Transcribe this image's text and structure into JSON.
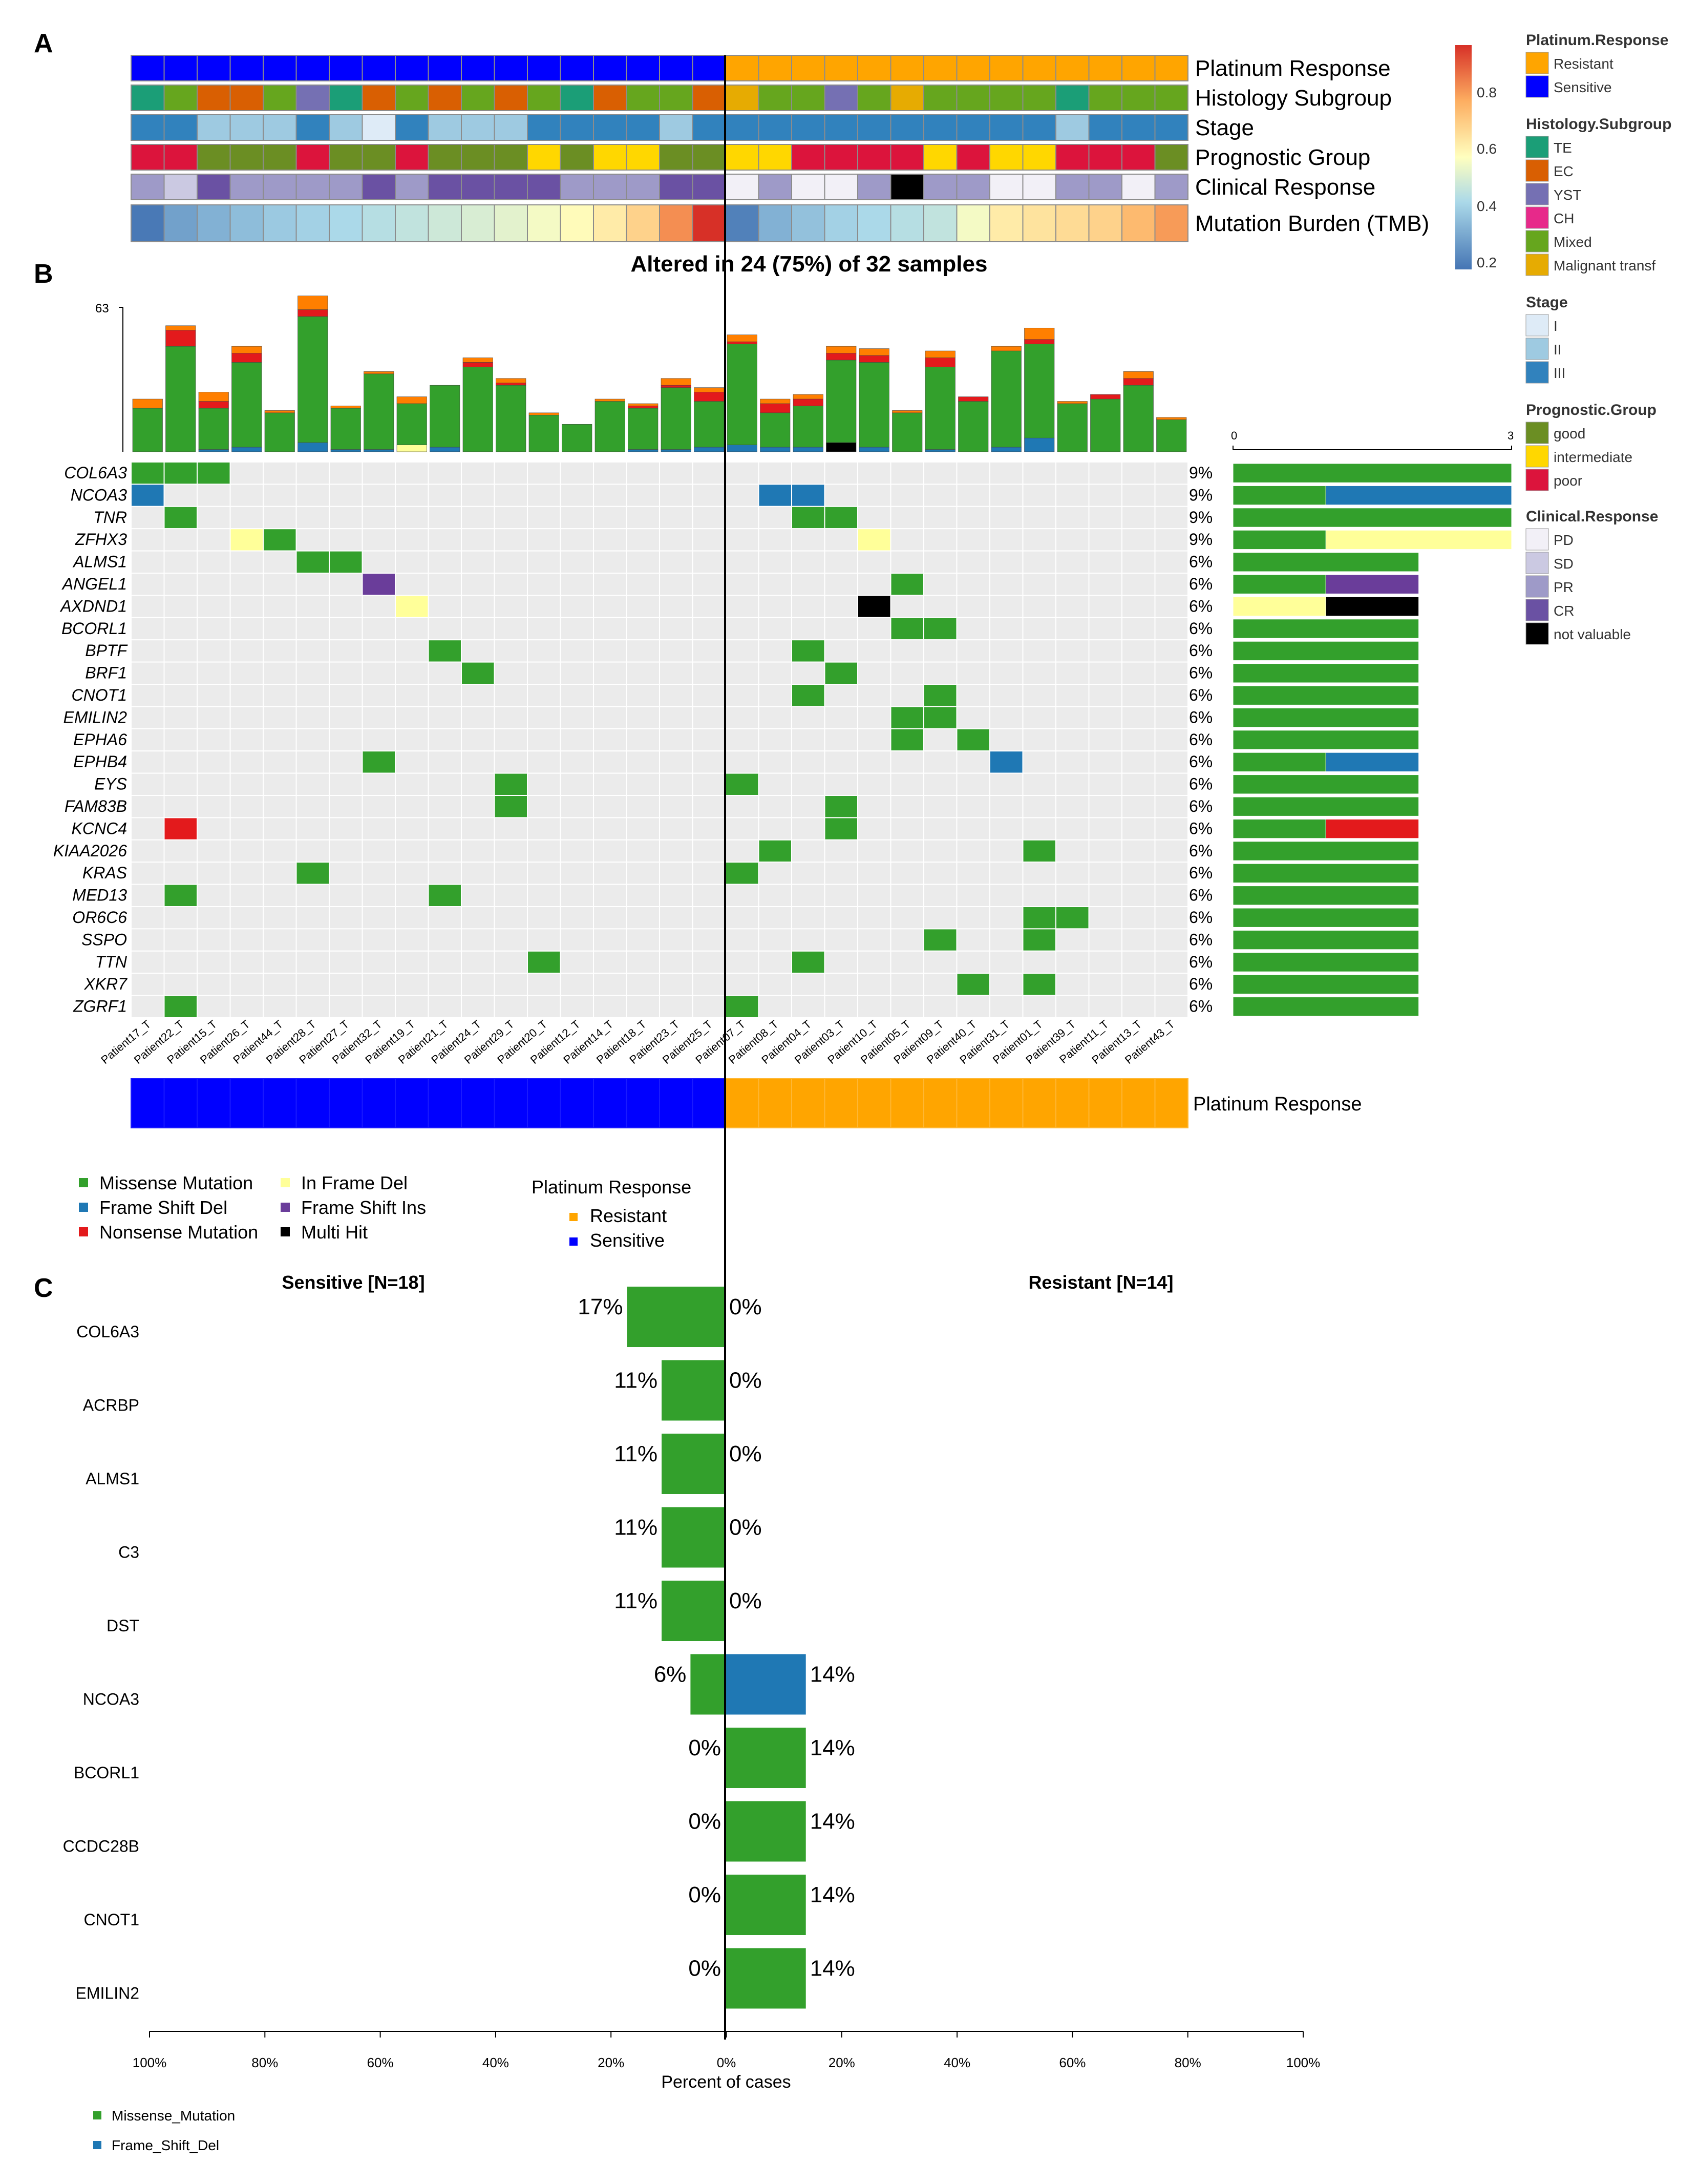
{
  "panels": {
    "a": "A",
    "b": "B",
    "c": "C"
  },
  "colors": {
    "missense": "#33a02c",
    "fsdel": "#1f78b4",
    "nonsense": "#e31a1c",
    "inframe": "#ffff99",
    "fsins": "#6a3d9a",
    "multi": "#000000",
    "splice": "#ff7f00",
    "resistant": "#ffa500",
    "sensitive": "#0000ff",
    "empty": "#ebebeb"
  },
  "patients": [
    "Patient17_T",
    "Patient22_T",
    "Patient15_T",
    "Patient26_T",
    "Patient44_T",
    "Patient28_T",
    "Patient27_T",
    "Patient32_T",
    "Patient19_T",
    "Patient21_T",
    "Patient24_T",
    "Patient29_T",
    "Patient20_T",
    "Patient12_T",
    "Patient14_T",
    "Patient18_T",
    "Patient23_T",
    "Patient25_T",
    "Patient07_T",
    "Patient08_T",
    "Patient04_T",
    "Patient03_T",
    "Patient10_T",
    "Patient05_T",
    "Patient09_T",
    "Patient40_T",
    "Patient31_T",
    "Patient01_T",
    "Patient39_T",
    "Patient11_T",
    "Patient13_T",
    "Patient43_T"
  ],
  "annotation_tracks": {
    "labels": [
      "Platinum Response",
      "Histology Subgroup",
      "Stage",
      "Prognostic Group",
      "Clinical Response",
      "Mutation Burden (TMB)"
    ],
    "platinum": [
      "S",
      "S",
      "S",
      "S",
      "S",
      "S",
      "S",
      "S",
      "S",
      "S",
      "S",
      "S",
      "S",
      "S",
      "S",
      "S",
      "S",
      "S",
      "R",
      "R",
      "R",
      "R",
      "R",
      "R",
      "R",
      "R",
      "R",
      "R",
      "R",
      "R",
      "R",
      "R"
    ],
    "histology": [
      "TE",
      "Mixed",
      "EC",
      "EC",
      "Mixed",
      "YST",
      "TE",
      "EC",
      "Mixed",
      "EC",
      "Mixed",
      "EC",
      "Mixed",
      "TE",
      "EC",
      "Mixed",
      "Mixed",
      "EC",
      "Malignant transf",
      "Mixed",
      "Mixed",
      "YST",
      "Mixed",
      "Malignant transf",
      "Mixed",
      "Mixed",
      "Mixed",
      "Mixed",
      "TE",
      "Mixed",
      "Mixed",
      "Mixed"
    ],
    "stage": [
      "III",
      "III",
      "II",
      "II",
      "II",
      "III",
      "II",
      "I",
      "III",
      "II",
      "II",
      "II",
      "III",
      "III",
      "III",
      "III",
      "II",
      "III",
      "III",
      "III",
      "III",
      "III",
      "III",
      "III",
      "III",
      "III",
      "III",
      "III",
      "II",
      "III",
      "III",
      "III"
    ],
    "prognostic": [
      "poor",
      "poor",
      "good",
      "good",
      "good",
      "poor",
      "good",
      "good",
      "poor",
      "good",
      "good",
      "good",
      "intermediate",
      "good",
      "intermediate",
      "intermediate",
      "good",
      "good",
      "intermediate",
      "intermediate",
      "poor",
      "poor",
      "poor",
      "poor",
      "intermediate",
      "poor",
      "intermediate",
      "intermediate",
      "poor",
      "poor",
      "poor",
      "good"
    ],
    "clinical": [
      "PR",
      "SD",
      "CR",
      "PR",
      "PR",
      "PR",
      "PR",
      "CR",
      "PR",
      "CR",
      "CR",
      "CR",
      "CR",
      "PR",
      "PR",
      "PR",
      "CR",
      "CR",
      "PD",
      "PR",
      "PD",
      "PD",
      "PR",
      "not valuable",
      "PR",
      "PR",
      "PD",
      "PD",
      "PR",
      "PR",
      "PD",
      "PR"
    ],
    "tmb": [
      0.16,
      0.26,
      0.3,
      0.33,
      0.36,
      0.38,
      0.4,
      0.42,
      0.44,
      0.46,
      0.48,
      0.5,
      0.53,
      0.56,
      0.6,
      0.66,
      0.8,
      0.96,
      0.18,
      0.3,
      0.34,
      0.38,
      0.4,
      0.42,
      0.44,
      0.53,
      0.6,
      0.62,
      0.64,
      0.66,
      0.72,
      0.78
    ]
  },
  "tmb_scale": {
    "ticks": [
      "0.8",
      "0.6",
      "0.4",
      "0.2"
    ]
  },
  "legend_a": {
    "platinum": {
      "title": "Platinum.Response",
      "items": [
        {
          "label": "Resistant",
          "color": "#ffa500"
        },
        {
          "label": "Sensitive",
          "color": "#0000ff"
        }
      ]
    },
    "histology": {
      "title": "Histology.Subgroup",
      "items": [
        {
          "label": "TE",
          "color": "#1b9e77"
        },
        {
          "label": "EC",
          "color": "#d95f02"
        },
        {
          "label": "YST",
          "color": "#7570b3"
        },
        {
          "label": "CH",
          "color": "#e7298a"
        },
        {
          "label": "Mixed",
          "color": "#66a61e"
        },
        {
          "label": "Malignant transf",
          "color": "#e6ab02"
        }
      ]
    },
    "stage": {
      "title": "Stage",
      "items": [
        {
          "label": "I",
          "color": "#deebf7"
        },
        {
          "label": "II",
          "color": "#9ecae1"
        },
        {
          "label": "III",
          "color": "#3182bd"
        }
      ]
    },
    "prognostic": {
      "title": "Prognostic.Group",
      "items": [
        {
          "label": "good",
          "color": "#6b8e23"
        },
        {
          "label": "intermediate",
          "color": "#ffd700"
        },
        {
          "label": "poor",
          "color": "#dc143c"
        }
      ]
    },
    "clinical": {
      "title": "Clinical.Response",
      "items": [
        {
          "label": "PD",
          "color": "#f2f0f7"
        },
        {
          "label": "SD",
          "color": "#cbc9e2"
        },
        {
          "label": "PR",
          "color": "#9e9ac8"
        },
        {
          "label": "CR",
          "color": "#6a51a3"
        },
        {
          "label": "not valuable",
          "color": "#000000"
        }
      ]
    }
  },
  "oncoplot": {
    "title": "Altered in 24 (75%) of 32 samples",
    "tmb_axis_max": "63",
    "side_axis": [
      "0",
      "3"
    ],
    "genes": [
      "COL6A3",
      "NCOA3",
      "TNR",
      "ZFHX3",
      "ALMS1",
      "ANGEL1",
      "AXDND1",
      "BCORL1",
      "BPTF",
      "BRF1",
      "CNOT1",
      "EMILIN2",
      "EPHA6",
      "EPHB4",
      "EYS",
      "FAM83B",
      "KCNC4",
      "KIAA2026",
      "KRAS",
      "MED13",
      "OR6C6",
      "SSPO",
      "TTN",
      "XKR7",
      "ZGRF1"
    ],
    "percents": [
      "9%",
      "9%",
      "9%",
      "9%",
      "6%",
      "6%",
      "6%",
      "6%",
      "6%",
      "6%",
      "6%",
      "6%",
      "6%",
      "6%",
      "6%",
      "6%",
      "6%",
      "6%",
      "6%",
      "6%",
      "6%",
      "6%",
      "6%",
      "6%",
      "6%"
    ],
    "mutations": [
      [
        0,
        "M"
      ],
      [
        1,
        "M"
      ],
      [
        2,
        "M"
      ],
      [
        0,
        "F"
      ],
      [
        19,
        "F"
      ],
      [
        20,
        "F"
      ],
      [
        1,
        "M"
      ],
      [
        20,
        "M"
      ],
      [
        21,
        "M"
      ],
      [
        3,
        "I"
      ],
      [
        4,
        "M"
      ],
      [
        22,
        "I"
      ],
      [
        5,
        "M"
      ],
      [
        6,
        "M"
      ],
      [
        7,
        "S"
      ],
      [
        23,
        "M"
      ],
      [
        8,
        "I"
      ],
      [
        22,
        "X"
      ],
      [
        23,
        "M"
      ],
      [
        24,
        "M"
      ],
      [
        9,
        "M"
      ],
      [
        20,
        "M"
      ],
      [
        10,
        "M"
      ],
      [
        21,
        "M"
      ],
      [
        20,
        "M"
      ],
      [
        24,
        "M"
      ],
      [
        23,
        "M"
      ],
      [
        24,
        "M"
      ],
      [
        23,
        "M"
      ],
      [
        25,
        "M"
      ],
      [
        7,
        "M"
      ],
      [
        26,
        "F"
      ],
      [
        11,
        "M"
      ],
      [
        18,
        "M"
      ],
      [
        11,
        "M"
      ],
      [
        21,
        "M"
      ],
      [
        1,
        "N"
      ],
      [
        21,
        "M"
      ],
      [
        19,
        "M"
      ],
      [
        27,
        "M"
      ],
      [
        5,
        "M"
      ],
      [
        18,
        "M"
      ],
      [
        1,
        "M"
      ],
      [
        9,
        "M"
      ],
      [
        27,
        "M"
      ],
      [
        28,
        "M"
      ],
      [
        24,
        "M"
      ],
      [
        27,
        "M"
      ],
      [
        12,
        "M"
      ],
      [
        20,
        "M"
      ],
      [
        25,
        "M"
      ],
      [
        27,
        "M"
      ],
      [
        1,
        "M"
      ],
      [
        18,
        "M"
      ]
    ],
    "mutation_rows": [
      3,
      3,
      3,
      3,
      2,
      2,
      2,
      2,
      2,
      2,
      2,
      2,
      2,
      2,
      2,
      2,
      2,
      2,
      2,
      2,
      2,
      2,
      2,
      2,
      2
    ],
    "side_bars": [
      [
        [
          "M",
          3
        ]
      ],
      [
        [
          "M",
          1
        ],
        [
          "F",
          2
        ]
      ],
      [
        [
          "M",
          3
        ]
      ],
      [
        [
          "M",
          1
        ],
        [
          "I",
          2
        ]
      ],
      [
        [
          "M",
          2
        ]
      ],
      [
        [
          "M",
          1
        ],
        [
          "S",
          1
        ]
      ],
      [
        [
          "I",
          1
        ],
        [
          "X",
          1
        ]
      ],
      [
        [
          "M",
          2
        ]
      ],
      [
        [
          "M",
          2
        ]
      ],
      [
        [
          "M",
          2
        ]
      ],
      [
        [
          "M",
          2
        ]
      ],
      [
        [
          "M",
          2
        ]
      ],
      [
        [
          "M",
          2
        ]
      ],
      [
        [
          "M",
          1
        ],
        [
          "F",
          1
        ]
      ],
      [
        [
          "M",
          2
        ]
      ],
      [
        [
          "M",
          2
        ]
      ],
      [
        [
          "M",
          1
        ],
        [
          "N",
          1
        ]
      ],
      [
        [
          "M",
          2
        ]
      ],
      [
        [
          "M",
          2
        ]
      ],
      [
        [
          "M",
          2
        ]
      ],
      [
        [
          "M",
          2
        ]
      ],
      [
        [
          "M",
          2
        ]
      ],
      [
        [
          "M",
          2
        ]
      ],
      [
        [
          "M",
          2
        ]
      ],
      [
        [
          "M",
          2
        ]
      ]
    ],
    "tmb_bars": [
      [
        [
          "M",
          19
        ],
        [
          "O",
          4
        ]
      ],
      [
        [
          "M",
          46
        ],
        [
          "N",
          7
        ],
        [
          "O",
          2
        ]
      ],
      [
        [
          "F",
          1
        ],
        [
          "M",
          18
        ],
        [
          "N",
          3
        ],
        [
          "O",
          4
        ]
      ],
      [
        [
          "F",
          2
        ],
        [
          "M",
          37
        ],
        [
          "N",
          4
        ],
        [
          "O",
          3
        ]
      ],
      [
        [
          "M",
          17
        ],
        [
          "O",
          1
        ]
      ],
      [
        [
          "F",
          4
        ],
        [
          "M",
          55
        ],
        [
          "N",
          3
        ],
        [
          "O",
          6
        ]
      ],
      [
        [
          "F",
          1
        ],
        [
          "M",
          18
        ],
        [
          "O",
          1
        ]
      ],
      [
        [
          "F",
          1
        ],
        [
          "M",
          33
        ],
        [
          "O",
          1
        ]
      ],
      [
        [
          "I",
          3
        ],
        [
          "M",
          18
        ],
        [
          "O",
          3
        ]
      ],
      [
        [
          "F",
          2
        ],
        [
          "M",
          27
        ]
      ],
      [
        [
          "M",
          37
        ],
        [
          "N",
          2
        ],
        [
          "O",
          2
        ]
      ],
      [
        [
          "M",
          29
        ],
        [
          "N",
          1
        ],
        [
          "O",
          2
        ]
      ],
      [
        [
          "M",
          16
        ],
        [
          "O",
          1
        ]
      ],
      [
        [
          "M",
          12
        ]
      ],
      [
        [
          "M",
          22
        ],
        [
          "O",
          1
        ]
      ],
      [
        [
          "F",
          1
        ],
        [
          "M",
          18
        ],
        [
          "N",
          1
        ],
        [
          "O",
          1
        ]
      ],
      [
        [
          "F",
          1
        ],
        [
          "M",
          27
        ],
        [
          "N",
          1
        ],
        [
          "O",
          3
        ]
      ],
      [
        [
          "F",
          2
        ],
        [
          "M",
          20
        ],
        [
          "N",
          4
        ],
        [
          "O",
          2
        ]
      ],
      [
        [
          "F",
          3
        ],
        [
          "M",
          44
        ],
        [
          "N",
          1
        ],
        [
          "O",
          3
        ]
      ],
      [
        [
          "F",
          2
        ],
        [
          "M",
          15
        ],
        [
          "N",
          4
        ],
        [
          "O",
          2
        ]
      ],
      [
        [
          "F",
          2
        ],
        [
          "M",
          18
        ],
        [
          "N",
          3
        ],
        [
          "O",
          2
        ]
      ],
      [
        [
          "X",
          4
        ],
        [
          "M",
          36
        ],
        [
          "N",
          3
        ],
        [
          "O",
          3
        ]
      ],
      [
        [
          "F",
          2
        ],
        [
          "M",
          37
        ],
        [
          "N",
          3
        ],
        [
          "O",
          3
        ]
      ],
      [
        [
          "M",
          17
        ],
        [
          "O",
          1
        ]
      ],
      [
        [
          "F",
          1
        ],
        [
          "M",
          36
        ],
        [
          "N",
          4
        ],
        [
          "O",
          3
        ]
      ],
      [
        [
          "M",
          22
        ],
        [
          "N",
          2
        ]
      ],
      [
        [
          "F",
          2
        ],
        [
          "M",
          42
        ],
        [
          "O",
          2
        ]
      ],
      [
        [
          "F",
          6
        ],
        [
          "M",
          41
        ],
        [
          "N",
          2
        ],
        [
          "O",
          5
        ]
      ],
      [
        [
          "M",
          21
        ],
        [
          "O",
          1
        ]
      ],
      [
        [
          "M",
          23
        ],
        [
          "N",
          2
        ]
      ],
      [
        [
          "M",
          29
        ],
        [
          "N",
          3
        ],
        [
          "O",
          3
        ]
      ],
      [
        [
          "M",
          14
        ],
        [
          "O",
          1
        ]
      ]
    ],
    "bottom_track_label": "Platinum Response"
  },
  "legend_b": {
    "items": [
      {
        "label": "Missense  Mutation",
        "key": "M"
      },
      {
        "label": "Frame  Shift  Del",
        "key": "F"
      },
      {
        "label": "Nonsense  Mutation",
        "key": "N"
      },
      {
        "label": "In  Frame  Del",
        "key": "I"
      },
      {
        "label": "Frame  Shift  Ins",
        "key": "S"
      },
      {
        "label": "Multi  Hit",
        "key": "X"
      }
    ],
    "platinum_title": "Platinum Response",
    "platinum_items": [
      "Resistant",
      "Sensitive"
    ]
  },
  "chart_data": {
    "type": "bar",
    "title_left": "Sensitive [N=18]",
    "title_right": "Resistant [N=14]",
    "categories": [
      "COL6A3",
      "ACRBP",
      "ALMS1",
      "C3",
      "DST",
      "NCOA3",
      "BCORL1",
      "CCDC28B",
      "CNOT1",
      "EMILIN2"
    ],
    "series": [
      {
        "name": "Sensitive",
        "values": [
          17,
          11,
          11,
          11,
          11,
          6,
          0,
          0,
          0,
          0
        ],
        "labels": [
          "17%",
          "11%",
          "11%",
          "11%",
          "11%",
          "6%",
          "0%",
          "0%",
          "0%",
          "0%"
        ]
      },
      {
        "name": "Resistant",
        "values": [
          0,
          0,
          0,
          0,
          0,
          14,
          14,
          14,
          14,
          14
        ],
        "labels": [
          "0%",
          "0%",
          "0%",
          "0%",
          "0%",
          "14%",
          "14%",
          "14%",
          "14%",
          "14%"
        ]
      }
    ],
    "variant_types": {
      "Sensitive": [
        "M",
        "M",
        "M",
        "M",
        "M",
        "M",
        "M",
        "M",
        "M",
        "M"
      ],
      "Resistant": [
        "M",
        "M",
        "M",
        "M",
        "M",
        "F",
        "M",
        "M",
        "M",
        "M"
      ]
    },
    "xlabel": "Percent of cases",
    "xticks": [
      "100%",
      "80%",
      "60%",
      "40%",
      "20%",
      "0%",
      "20%",
      "40%",
      "60%",
      "80%",
      "100%"
    ],
    "xlim": [
      -100,
      100
    ],
    "legend": [
      {
        "label": "Missense_Mutation",
        "key": "M"
      },
      {
        "label": "Frame_Shift_Del",
        "key": "F"
      }
    ]
  }
}
